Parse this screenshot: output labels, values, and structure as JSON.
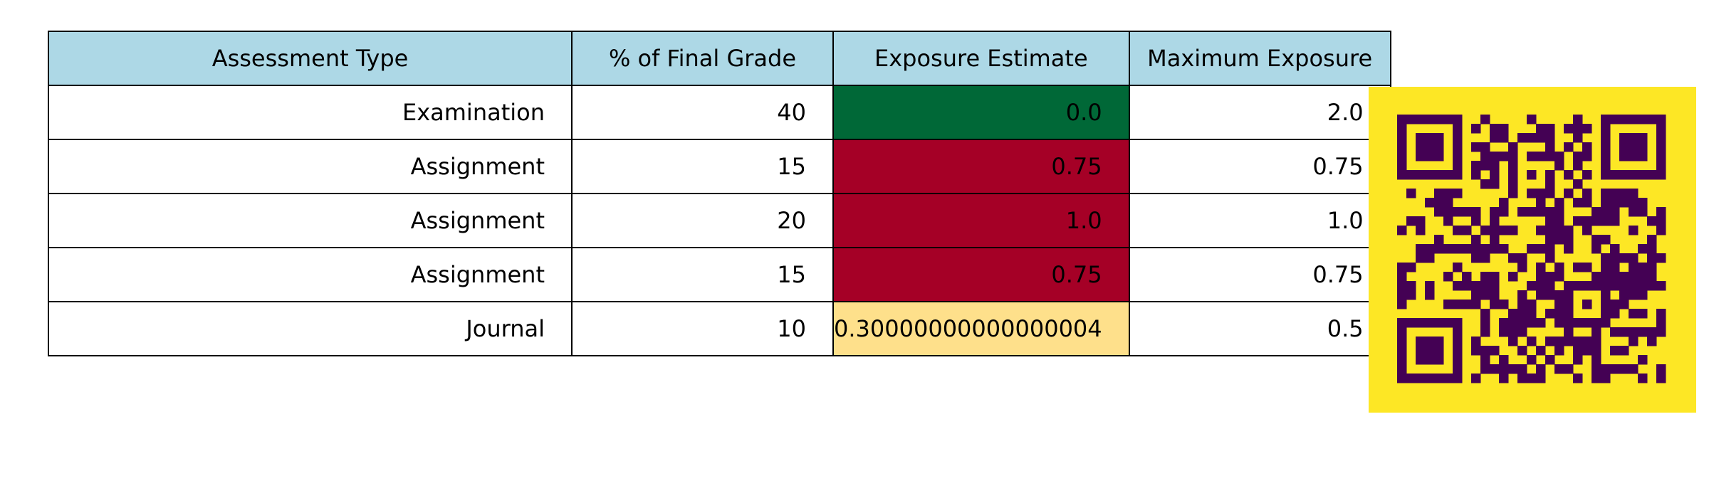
{
  "chart_data": {
    "type": "table",
    "columns": [
      "Assessment Type",
      "% of Final Grade",
      "Exposure Estimate",
      "Maximum Exposure"
    ],
    "rows": [
      [
        "Examination",
        "40",
        "0.0",
        "2.0"
      ],
      [
        "Assignment",
        "15",
        "0.75",
        "0.75"
      ],
      [
        "Assignment",
        "20",
        "1.0",
        "1.0"
      ],
      [
        "Assignment",
        "15",
        "0.75",
        "0.75"
      ],
      [
        "Journal",
        "10",
        "0.30000000000000004",
        "0.5"
      ]
    ],
    "exposure_colors": [
      "#006837",
      "#a50026",
      "#a50026",
      "#a50026",
      "#fee08b"
    ],
    "header_color": "#add8e6"
  },
  "qr": {
    "background": "#fde725",
    "foreground": "#440154"
  }
}
